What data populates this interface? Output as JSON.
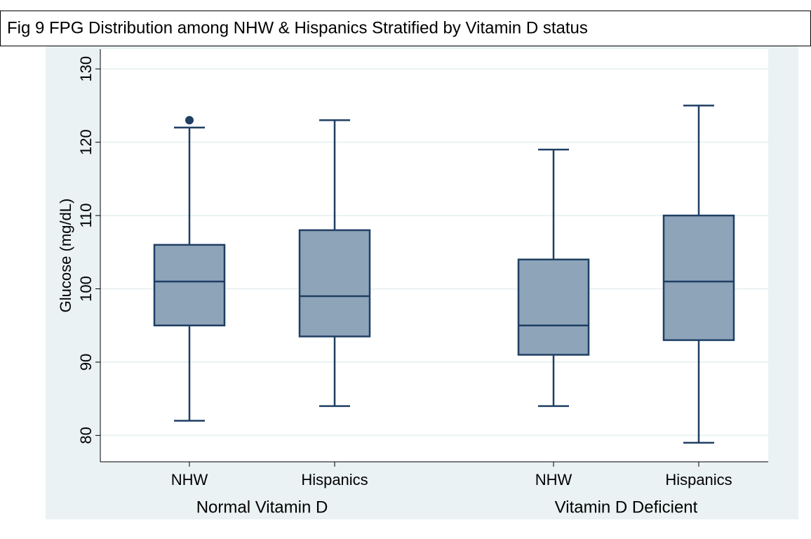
{
  "chart_data": {
    "type": "box",
    "title": "Fig 9   FPG Distribution among NHW & Hispanics Stratified by Vitamin D status",
    "ylabel": "Glucose (mg/dL)",
    "groups": [
      {
        "name": "Normal Vitamin D",
        "boxes": [
          {
            "label": "NHW",
            "min": 82,
            "q1": 95,
            "median": 101,
            "q3": 106,
            "max": 122,
            "outliers": [
              123
            ]
          },
          {
            "label": "Hispanics",
            "min": 84,
            "q1": 93.5,
            "median": 99,
            "q3": 108,
            "max": 123,
            "outliers": []
          }
        ]
      },
      {
        "name": "Vitamin D Deficient",
        "boxes": [
          {
            "label": "NHW",
            "min": 84,
            "q1": 91,
            "median": 95,
            "q3": 104,
            "max": 119,
            "outliers": []
          },
          {
            "label": "Hispanics",
            "min": 79,
            "q1": 93,
            "median": 101,
            "q3": 110,
            "max": 125,
            "outliers": []
          }
        ]
      }
    ],
    "ylim": [
      76.4,
      132.7
    ],
    "yticks": [
      80,
      90,
      100,
      110,
      120,
      130
    ],
    "grid": true,
    "color": "#8ea4b9",
    "edgecolor": "#1f3f63"
  }
}
